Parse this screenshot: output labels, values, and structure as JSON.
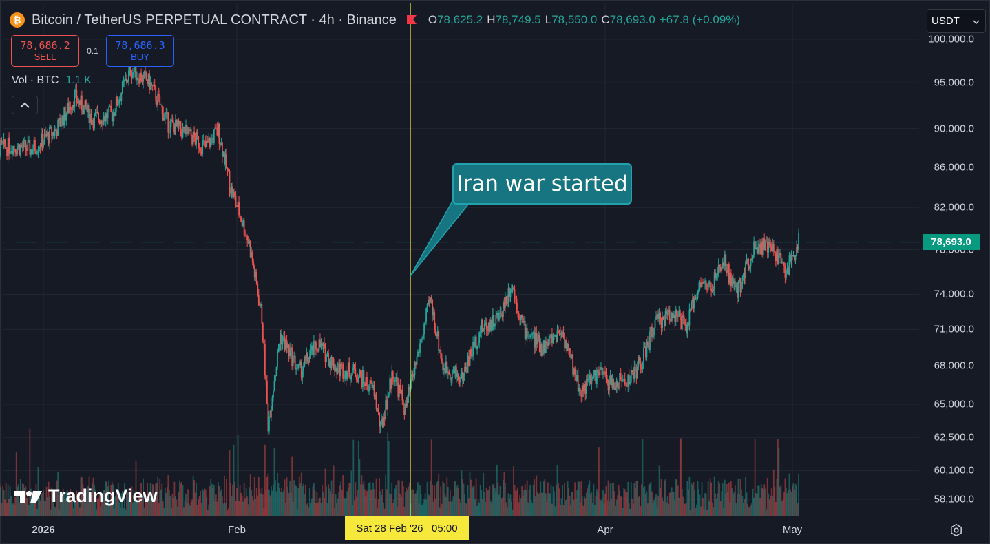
{
  "header": {
    "coin_glyph": "₿",
    "symbol_title": "Bitcoin / TetherUS PERPETUAL CONTRACT · 4h · Binance",
    "ohlc": [
      {
        "k": "O",
        "v": "78,625.2"
      },
      {
        "k": "H",
        "v": "78,749.5"
      },
      {
        "k": "L",
        "v": "78,550.0"
      },
      {
        "k": "C",
        "v": "78,693.0"
      }
    ],
    "change": "+67.8 (+0.09%)"
  },
  "trade": {
    "sell_price": "78,686.2",
    "sell_label": "SELL",
    "qty": "0.1",
    "buy_price": "78,686.3",
    "buy_label": "BUY"
  },
  "volume": {
    "label": "Vol · BTC",
    "value": "1.1 K"
  },
  "currency": {
    "value": "USDT",
    "chevron": "⌄"
  },
  "collapse": {
    "glyph": "︿"
  },
  "annotation": {
    "text": "Iran war started"
  },
  "crosshair": {
    "date_label": "Sat 28 Feb '26   05:00"
  },
  "logo": {
    "text": "TradingView",
    "icon": "tradingview-logo-icon"
  },
  "icons": {
    "coin": "bitcoin-icon",
    "flag": "flag-icon",
    "settings": "settings-icon"
  },
  "colors": {
    "background": "#161a25",
    "up": "#26a69a",
    "down": "#ef5350",
    "crosshair": "#f7e83c",
    "last_price": "#089981",
    "annotation_bg": "#167580"
  },
  "chart_data": {
    "type": "candlestick",
    "title": "Bitcoin / TetherUS PERPETUAL CONTRACT · 4h · Binance",
    "interval": "4h",
    "scale": "logarithmic",
    "price_ticks": [
      "100,000.0",
      "95,000.0",
      "90,000.0",
      "86,000.0",
      "82,000.0",
      "78,000.0",
      "74,000.0",
      "71,000.0",
      "68,000.0",
      "65,000.0",
      "62,500.0",
      "60,100.0",
      "58,100.0"
    ],
    "price_tick_values": [
      100000,
      95000,
      90000,
      86000,
      82000,
      78000,
      74000,
      71000,
      68000,
      65000,
      62500,
      60100,
      58100
    ],
    "time_ticks": [
      {
        "label": "2026",
        "date": "2026-01-01",
        "bold": true
      },
      {
        "label": "Feb",
        "date": "2026-02-01",
        "bold": false
      },
      {
        "label": "Apr",
        "date": "2026-04-01",
        "bold": false
      },
      {
        "label": "May",
        "date": "2026-05-01",
        "bold": false
      }
    ],
    "last_price": "78,693.0",
    "last_price_value": 78693,
    "annotation": {
      "text": "Iran war started",
      "date": "2026-02-28",
      "price": 75600
    },
    "price_path": [
      {
        "date": "2025-12-23",
        "close": 87500
      },
      {
        "date": "2025-12-27",
        "close": 88200
      },
      {
        "date": "2025-12-30",
        "close": 87800
      },
      {
        "date": "2026-01-03",
        "close": 89800
      },
      {
        "date": "2026-01-06",
        "close": 93400
      },
      {
        "date": "2026-01-09",
        "close": 91000
      },
      {
        "date": "2026-01-12",
        "close": 91500
      },
      {
        "date": "2026-01-15",
        "close": 96500
      },
      {
        "date": "2026-01-18",
        "close": 95000
      },
      {
        "date": "2026-01-21",
        "close": 90500
      },
      {
        "date": "2026-01-24",
        "close": 89500
      },
      {
        "date": "2026-01-27",
        "close": 88000
      },
      {
        "date": "2026-01-29",
        "close": 89800
      },
      {
        "date": "2026-01-31",
        "close": 84000
      },
      {
        "date": "2026-02-03",
        "close": 78500
      },
      {
        "date": "2026-02-05",
        "close": 72000
      },
      {
        "date": "2026-02-06",
        "close": 63500
      },
      {
        "date": "2026-02-08",
        "close": 70500
      },
      {
        "date": "2026-02-11",
        "close": 67500
      },
      {
        "date": "2026-02-14",
        "close": 69800
      },
      {
        "date": "2026-02-17",
        "close": 67800
      },
      {
        "date": "2026-02-20",
        "close": 67500
      },
      {
        "date": "2026-02-23",
        "close": 66000
      },
      {
        "date": "2026-02-24",
        "close": 63000
      },
      {
        "date": "2026-02-26",
        "close": 67500
      },
      {
        "date": "2026-02-28",
        "close": 64500
      },
      {
        "date": "2026-03-02",
        "close": 69000
      },
      {
        "date": "2026-03-04",
        "close": 73500
      },
      {
        "date": "2026-03-06",
        "close": 68000
      },
      {
        "date": "2026-03-09",
        "close": 67000
      },
      {
        "date": "2026-03-12",
        "close": 71000
      },
      {
        "date": "2026-03-15",
        "close": 72000
      },
      {
        "date": "2026-03-17",
        "close": 75000
      },
      {
        "date": "2026-03-19",
        "close": 71000
      },
      {
        "date": "2026-03-22",
        "close": 69500
      },
      {
        "date": "2026-03-25",
        "close": 71000
      },
      {
        "date": "2026-03-28",
        "close": 66000
      },
      {
        "date": "2026-03-31",
        "close": 67500
      },
      {
        "date": "2026-04-02",
        "close": 66500
      },
      {
        "date": "2026-04-05",
        "close": 67000
      },
      {
        "date": "2026-04-07",
        "close": 68500
      },
      {
        "date": "2026-04-09",
        "close": 71500
      },
      {
        "date": "2026-04-12",
        "close": 72500
      },
      {
        "date": "2026-04-14",
        "close": 71000
      },
      {
        "date": "2026-04-16",
        "close": 75000
      },
      {
        "date": "2026-04-18",
        "close": 74500
      },
      {
        "date": "2026-04-20",
        "close": 77000
      },
      {
        "date": "2026-04-22",
        "close": 74000
      },
      {
        "date": "2026-04-25",
        "close": 78500
      },
      {
        "date": "2026-04-28",
        "close": 78000
      },
      {
        "date": "2026-04-30",
        "close": 76000
      },
      {
        "date": "2026-05-02",
        "close": 78693
      }
    ],
    "legend": "none",
    "grid": true
  }
}
